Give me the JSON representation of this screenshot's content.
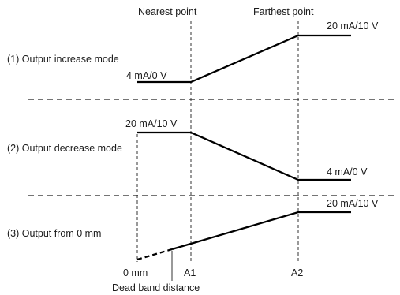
{
  "headers": {
    "nearest": "Nearest point",
    "farthest": "Farthest point"
  },
  "modes": [
    {
      "label": "(1) Output increase mode",
      "start": "4 mA/0 V",
      "end": "20 mA/10 V"
    },
    {
      "label": "(2) Output decrease mode",
      "start": "20 mA/10 V",
      "end": "4 mA/0 V"
    },
    {
      "label": "(3) Output from 0 mm",
      "end": "20 mA/10 V"
    }
  ],
  "axis": {
    "zero": "0 mm",
    "a1": "A1",
    "a2": "A2",
    "dead_band": "Dead band distance"
  }
}
